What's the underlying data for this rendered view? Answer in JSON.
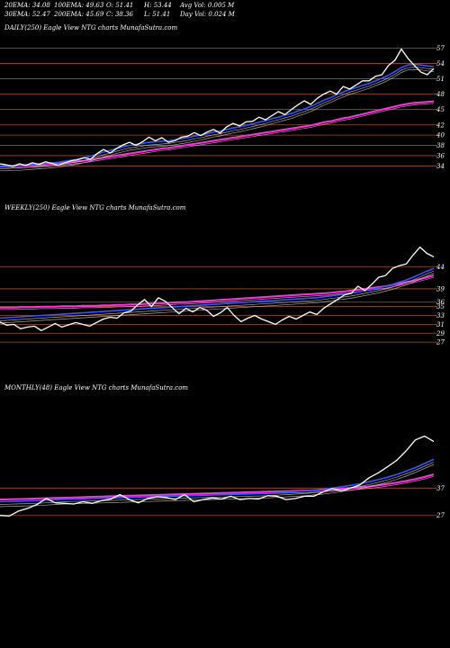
{
  "stats": {
    "ema20": "20EMA: 34.08",
    "ema100": "100EMA: 49.63",
    "open": "O: 51.41",
    "high": "H: 53.44",
    "avg_vol": "Avg Vol: 0.005 M",
    "ema30": "30EMA: 52.47",
    "ema200": "200EMA: 45.69",
    "close": "C: 38.36",
    "low": "L: 51.41",
    "day_vol": "Day Vol: 0.024 M"
  },
  "colors": {
    "background": "#000000",
    "price": "#ffffff",
    "ema_short": "#3355ff",
    "ema_long": "#ff33dd",
    "gridline": "#a0522d"
  },
  "chart_data": [
    {
      "type": "line",
      "title": "DAILY(250) Eagle  View NTG charts MunafaSutra.com",
      "y_ticks": [
        "57",
        "54",
        "51",
        "48",
        "45",
        "42",
        "40",
        "38",
        "36",
        "34"
      ],
      "ylim": [
        33,
        59
      ],
      "grid": true,
      "series": [
        {
          "values": [
            34.4,
            34.2,
            33.9,
            34.4,
            34.1,
            34.6,
            34.3,
            34.8,
            34.5,
            34.1,
            34.6,
            35.0,
            35.2,
            35.6,
            35.3,
            36.4,
            37.2,
            36.5,
            37.4,
            38.1,
            38.6,
            38.0,
            38.7,
            39.6,
            38.9,
            39.5,
            38.6,
            38.9,
            39.6,
            39.8,
            40.5,
            39.9,
            40.6,
            41.1,
            40.4,
            41.6,
            42.3,
            41.8,
            42.6,
            42.7,
            43.5,
            43.0,
            43.8,
            44.6,
            44.0,
            45.0,
            45.9,
            46.7,
            46.0,
            47.2,
            48.0,
            48.6,
            48.0,
            49.5,
            49.0,
            49.8,
            50.6,
            50.6,
            51.5,
            51.8,
            53.6,
            54.6,
            56.8,
            55.0,
            53.6,
            52.3,
            51.8,
            53.0
          ]
        },
        {
          "values": [
            34.0,
            34.0,
            34.1,
            34.1,
            34.2,
            34.3,
            34.4,
            34.5,
            34.6,
            34.7,
            34.9,
            35.1,
            35.3,
            35.6,
            35.9,
            36.3,
            36.7,
            37.0,
            37.4,
            37.7,
            38.0,
            38.2,
            38.4,
            38.6,
            38.7,
            38.8,
            38.9,
            39.1,
            39.3,
            39.5,
            39.8,
            40.0,
            40.3,
            40.6,
            40.8,
            41.1,
            41.4,
            41.6,
            41.9,
            42.2,
            42.5,
            42.8,
            43.2,
            43.5,
            43.9,
            44.2,
            44.7,
            45.1,
            45.6,
            46.2,
            46.8,
            47.3,
            47.9,
            48.4,
            48.9,
            49.3,
            49.7,
            50.1,
            50.6,
            51.1,
            51.7,
            52.4,
            53.2,
            53.7,
            53.8,
            53.7,
            53.5,
            53.4
          ]
        },
        {
          "values": [
            33.9,
            33.9,
            34.0,
            34.0,
            34.1,
            34.1,
            34.2,
            34.3,
            34.4,
            34.5,
            34.6,
            34.7,
            34.9,
            35.0,
            35.2,
            35.4,
            35.6,
            35.8,
            36.0,
            36.2,
            36.4,
            36.6,
            36.8,
            37.0,
            37.2,
            37.4,
            37.5,
            37.7,
            37.9,
            38.1,
            38.3,
            38.5,
            38.7,
            38.9,
            39.1,
            39.3,
            39.5,
            39.7,
            39.9,
            40.1,
            40.3,
            40.5,
            40.7,
            40.9,
            41.1,
            41.3,
            41.5,
            41.7,
            41.9,
            42.2,
            42.5,
            42.7,
            43.0,
            43.3,
            43.5,
            43.8,
            44.1,
            44.4,
            44.7,
            45.0,
            45.3,
            45.6,
            45.9,
            46.1,
            46.3,
            46.4,
            46.5,
            46.6
          ]
        }
      ]
    },
    {
      "type": "line",
      "title": "WEEKLY(250) Eagle  View NTG charts MunafaSutra.com",
      "y_ticks": [
        "44",
        "39",
        "36",
        "35",
        "33",
        "31",
        "29",
        "27"
      ],
      "ylim": [
        25,
        55
      ],
      "grid": true,
      "series": [
        {
          "values": [
            31.5,
            30.8,
            31.0,
            30.0,
            30.4,
            30.6,
            29.6,
            30.4,
            31.2,
            30.4,
            30.9,
            31.4,
            31.0,
            30.6,
            31.4,
            32.2,
            32.6,
            32.4,
            33.6,
            34.0,
            35.4,
            36.6,
            35.0,
            37.0,
            36.2,
            34.8,
            33.4,
            34.6,
            33.8,
            34.8,
            34.2,
            32.8,
            33.6,
            34.8,
            33.0,
            31.6,
            32.4,
            33.0,
            32.2,
            31.6,
            31.0,
            32.0,
            32.8,
            32.2,
            33.0,
            33.8,
            33.2,
            34.6,
            35.6,
            36.6,
            37.6,
            38.0,
            39.6,
            38.6,
            40.0,
            41.6,
            42.0,
            43.6,
            44.2,
            44.6,
            46.6,
            48.4,
            47.0,
            46.2
          ]
        },
        {
          "values": [
            32.4,
            32.5,
            32.6,
            32.7,
            32.8,
            32.9,
            33.0,
            33.1,
            33.2,
            33.3,
            33.4,
            33.5,
            33.6,
            33.7,
            33.8,
            33.9,
            34.0,
            34.1,
            34.2,
            34.3,
            34.4,
            34.5,
            34.6,
            34.7,
            34.8,
            34.9,
            35.0,
            35.1,
            35.2,
            35.3,
            35.4,
            35.5,
            35.6,
            35.7,
            35.8,
            35.9,
            36.0,
            36.1,
            36.2,
            36.3,
            36.4,
            36.5,
            36.6,
            36.7,
            36.8,
            36.9,
            37.0,
            37.2,
            37.4,
            37.6,
            37.8,
            38.0,
            38.3,
            38.6,
            38.9,
            39.2,
            39.6,
            40.0,
            40.5,
            41.0,
            41.6,
            42.3,
            43.0,
            43.6
          ]
        },
        {
          "values": [
            34.8,
            34.8,
            34.8,
            34.9,
            34.9,
            34.9,
            35.0,
            35.0,
            35.0,
            35.1,
            35.1,
            35.1,
            35.2,
            35.2,
            35.2,
            35.3,
            35.3,
            35.4,
            35.4,
            35.5,
            35.5,
            35.6,
            35.7,
            35.7,
            35.8,
            35.9,
            36.0,
            36.0,
            36.1,
            36.2,
            36.3,
            36.4,
            36.5,
            36.6,
            36.7,
            36.8,
            36.9,
            37.0,
            37.1,
            37.2,
            37.3,
            37.4,
            37.5,
            37.6,
            37.7,
            37.8,
            37.9,
            38.0,
            38.1,
            38.3,
            38.4,
            38.6,
            38.8,
            39.0,
            39.2,
            39.4,
            39.6,
            39.9,
            40.2,
            40.5,
            40.8,
            41.2,
            41.6,
            42.0
          ]
        }
      ]
    },
    {
      "type": "line",
      "title": "MONTHLY(48) Eagle  View NTG charts MunafaSutra.com",
      "y_ticks": [
        "37",
        "27"
      ],
      "ylim": [
        20,
        70
      ],
      "grid": true,
      "series": [
        {
          "values": [
            27.0,
            26.8,
            28.6,
            29.6,
            31.0,
            33.2,
            31.6,
            31.4,
            31.2,
            32.0,
            31.4,
            32.4,
            33.0,
            34.6,
            32.8,
            31.6,
            33.2,
            33.8,
            33.6,
            32.8,
            34.6,
            32.0,
            32.8,
            33.4,
            33.0,
            34.0,
            32.8,
            33.2,
            33.0,
            34.2,
            34.0,
            32.8,
            33.2,
            34.0,
            34.0,
            35.6,
            36.8,
            36.0,
            37.0,
            38.2,
            40.8,
            42.6,
            44.8,
            47.2,
            50.6,
            54.6,
            56.0,
            54.0
          ]
        },
        {
          "values": [
            32.0,
            32.1,
            32.2,
            32.3,
            32.4,
            32.6,
            32.8,
            33.0,
            33.1,
            33.2,
            33.3,
            33.4,
            33.5,
            33.6,
            33.7,
            33.8,
            33.9,
            34.0,
            34.1,
            34.2,
            34.3,
            34.4,
            34.5,
            34.6,
            34.7,
            34.8,
            34.9,
            35.0,
            35.1,
            35.2,
            35.4,
            35.6,
            35.8,
            36.0,
            36.3,
            36.6,
            37.0,
            37.5,
            38.0,
            38.6,
            39.3,
            40.1,
            41.0,
            42.0,
            43.2,
            44.5,
            46.0,
            47.5
          ]
        },
        {
          "values": [
            32.8,
            32.9,
            33.0,
            33.1,
            33.2,
            33.3,
            33.4,
            33.5,
            33.6,
            33.7,
            33.8,
            33.9,
            34.0,
            34.1,
            34.2,
            34.3,
            34.4,
            34.5,
            34.6,
            34.7,
            34.8,
            34.9,
            35.0,
            35.1,
            35.2,
            35.3,
            35.4,
            35.5,
            35.6,
            35.7,
            35.8,
            35.9,
            36.0,
            36.1,
            36.2,
            36.4,
            36.6,
            36.8,
            37.0,
            37.3,
            37.6,
            38.0,
            38.5,
            39.0,
            39.6,
            40.3,
            41.1,
            42.0
          ]
        }
      ]
    }
  ]
}
